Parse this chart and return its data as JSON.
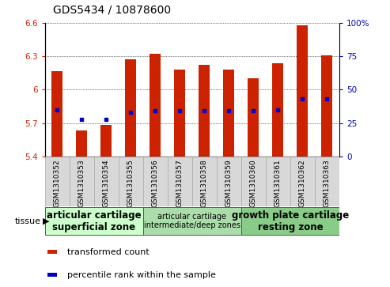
{
  "title": "GDS5434 / 10878600",
  "samples": [
    "GSM1310352",
    "GSM1310353",
    "GSM1310354",
    "GSM1310355",
    "GSM1310356",
    "GSM1310357",
    "GSM1310358",
    "GSM1310359",
    "GSM1310360",
    "GSM1310361",
    "GSM1310362",
    "GSM1310363"
  ],
  "bar_values": [
    6.17,
    5.63,
    5.68,
    6.27,
    6.32,
    6.18,
    6.22,
    6.18,
    6.1,
    6.24,
    6.58,
    6.31
  ],
  "blue_marker_values": [
    5.82,
    5.73,
    5.73,
    5.8,
    5.81,
    5.81,
    5.81,
    5.81,
    5.81,
    5.82,
    5.92,
    5.92
  ],
  "ymin": 5.4,
  "ymax": 6.6,
  "yticks_left": [
    5.4,
    5.7,
    6.0,
    6.3,
    6.6
  ],
  "ytick_labels_left": [
    "5.4",
    "5.7",
    "6",
    "6.3",
    "6.6"
  ],
  "right_ytick_pcts": [
    0,
    25,
    50,
    75,
    100
  ],
  "bar_color": "#cc2200",
  "blue_color": "#0000cc",
  "bg_color": "#ffffff",
  "tissue_groups": [
    {
      "label": "articular cartilage\nsuperficial zone",
      "start": 0,
      "end": 3,
      "color": "#ccffcc",
      "fontsize": 8.5,
      "bold": true
    },
    {
      "label": "articular cartilage\nintermediate/deep zones",
      "start": 4,
      "end": 7,
      "color": "#aaddaa",
      "fontsize": 7.0,
      "bold": false
    },
    {
      "label": "growth plate cartilage\nresting zone",
      "start": 8,
      "end": 11,
      "color": "#88cc88",
      "fontsize": 8.5,
      "bold": true
    }
  ],
  "legend_items": [
    {
      "color": "#cc2200",
      "label": "transformed count"
    },
    {
      "color": "#0000cc",
      "label": "percentile rank within the sample"
    }
  ],
  "left_tick_color": "#cc2200",
  "right_tick_color": "#0000aa",
  "title_fontsize": 10,
  "tick_fontsize": 7.5,
  "bar_width": 0.45
}
